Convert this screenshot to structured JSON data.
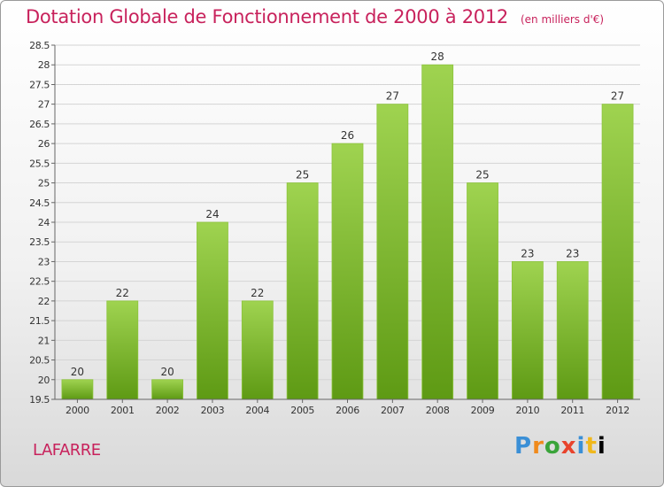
{
  "header": {
    "title": "Dotation Globale de Fonctionnement de 2000 à 2012",
    "unit": "(en milliers d'€)"
  },
  "footer": {
    "town": "LAFARRE",
    "logo": "Proxiti"
  },
  "colors": {
    "title": "#c8225c",
    "bar_top": "#9fd350",
    "bar_bottom": "#5e9a14",
    "grid": "#d4d4d4",
    "axis_text": "#333333"
  },
  "chart_data": {
    "type": "bar",
    "title": "Dotation Globale de Fonctionnement de 2000 à 2012",
    "subtitle": "(en milliers d'€)",
    "categories": [
      "2000",
      "2001",
      "2002",
      "2003",
      "2004",
      "2005",
      "2006",
      "2007",
      "2008",
      "2009",
      "2010",
      "2011",
      "2012"
    ],
    "values": [
      20,
      22,
      20,
      24,
      22,
      25,
      26,
      27,
      28,
      25,
      23,
      23,
      27
    ],
    "ylim": [
      19.5,
      28.5
    ],
    "yticks": [
      19.5,
      20,
      20.5,
      21,
      21.5,
      22,
      22.5,
      23,
      23.5,
      24,
      24.5,
      25,
      25.5,
      26,
      26.5,
      27,
      27.5,
      28,
      28.5
    ],
    "grid": true,
    "xlabel": "",
    "ylabel": ""
  }
}
